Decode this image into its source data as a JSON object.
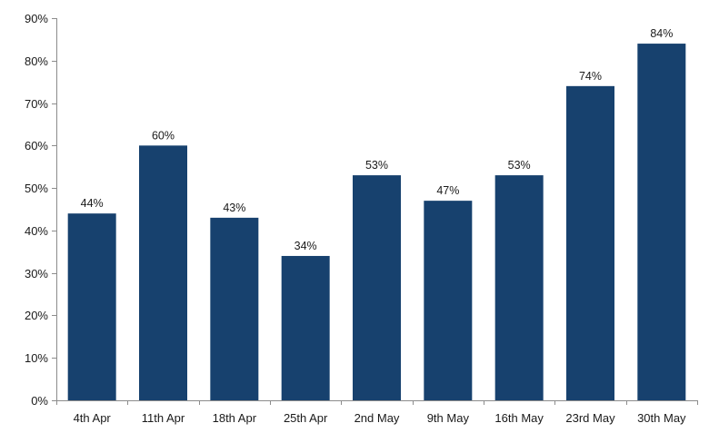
{
  "chart_data": {
    "type": "bar",
    "title": "",
    "xlabel": "",
    "ylabel": "",
    "categories": [
      "4th Apr",
      "11th Apr",
      "18th Apr",
      "25th Apr",
      "2nd May",
      "9th May",
      "16th May",
      "23rd May",
      "30th May"
    ],
    "values": [
      44,
      60,
      43,
      34,
      53,
      47,
      53,
      74,
      84
    ],
    "data_labels": [
      "44%",
      "60%",
      "43%",
      "34%",
      "53%",
      "47%",
      "53%",
      "74%",
      "84%"
    ],
    "ylim": [
      0,
      90
    ],
    "y_ticks": [
      0,
      10,
      20,
      30,
      40,
      50,
      60,
      70,
      80,
      90
    ],
    "y_tick_labels": [
      "0%",
      "10%",
      "20%",
      "30%",
      "40%",
      "50%",
      "60%",
      "70%",
      "80%",
      "90%"
    ],
    "grid": false,
    "legend": "none",
    "bar_color": "#17416e",
    "axis_color": "#8c8c8c",
    "text_color": "#1a1a1a"
  }
}
